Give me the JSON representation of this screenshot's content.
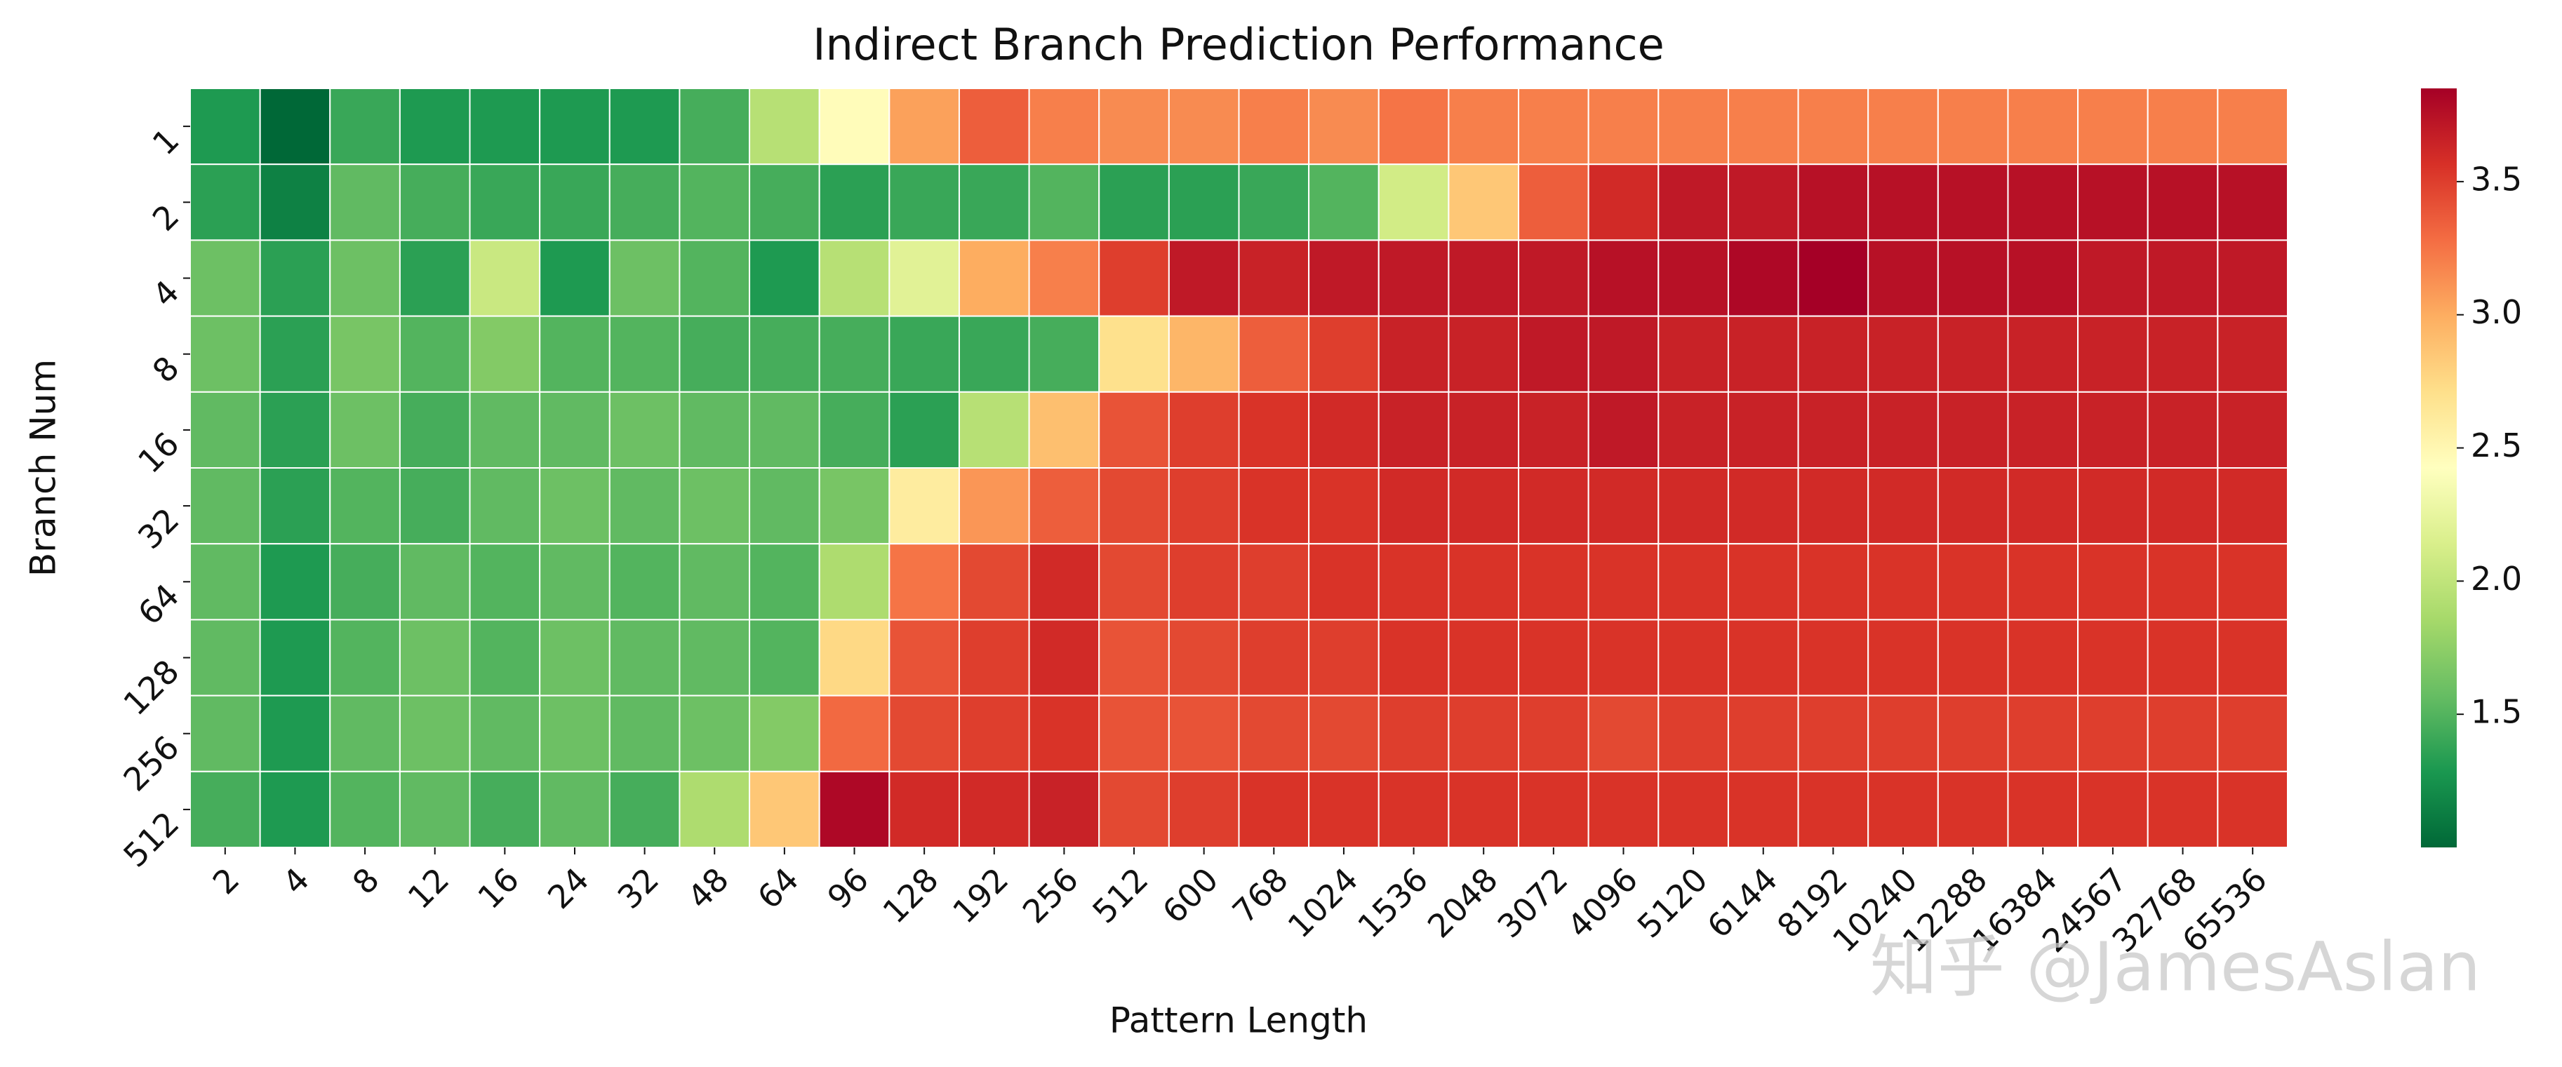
{
  "chart_data": {
    "type": "heatmap",
    "title": "Indirect Branch Prediction Performance",
    "x_label": "Pattern Length",
    "y_label": "Branch Num",
    "x_categories": [
      2,
      4,
      8,
      12,
      16,
      24,
      32,
      48,
      64,
      96,
      128,
      192,
      256,
      512,
      600,
      768,
      1024,
      1536,
      2048,
      3072,
      4096,
      5120,
      6144,
      8192,
      10240,
      12288,
      16384,
      24567,
      32768,
      65536
    ],
    "y_categories": [
      1,
      2,
      4,
      8,
      16,
      32,
      64,
      128,
      256,
      512
    ],
    "values": [
      [
        1.3,
        1.0,
        1.4,
        1.3,
        1.3,
        1.3,
        1.3,
        1.45,
        1.95,
        2.45,
        3.05,
        3.35,
        3.2,
        3.15,
        3.15,
        3.2,
        3.15,
        3.25,
        3.2,
        3.2,
        3.2,
        3.2,
        3.2,
        3.2,
        3.2,
        3.2,
        3.2,
        3.2,
        3.2,
        3.2
      ],
      [
        1.35,
        1.15,
        1.55,
        1.45,
        1.4,
        1.4,
        1.45,
        1.5,
        1.45,
        1.35,
        1.4,
        1.4,
        1.5,
        1.35,
        1.35,
        1.4,
        1.5,
        2.1,
        2.85,
        3.35,
        3.6,
        3.7,
        3.7,
        3.75,
        3.75,
        3.75,
        3.75,
        3.75,
        3.75,
        3.75
      ],
      [
        1.6,
        1.35,
        1.6,
        1.35,
        2.05,
        1.3,
        1.6,
        1.5,
        1.3,
        1.95,
        2.2,
        3.0,
        3.2,
        3.5,
        3.7,
        3.65,
        3.7,
        3.7,
        3.7,
        3.7,
        3.75,
        3.75,
        3.8,
        3.85,
        3.75,
        3.75,
        3.75,
        3.7,
        3.7,
        3.7
      ],
      [
        1.6,
        1.35,
        1.65,
        1.5,
        1.7,
        1.5,
        1.5,
        1.45,
        1.45,
        1.45,
        1.4,
        1.4,
        1.45,
        2.7,
        2.95,
        3.35,
        3.5,
        3.65,
        3.65,
        3.7,
        3.7,
        3.65,
        3.65,
        3.65,
        3.65,
        3.65,
        3.65,
        3.65,
        3.65,
        3.65
      ],
      [
        1.55,
        1.35,
        1.6,
        1.45,
        1.55,
        1.55,
        1.6,
        1.55,
        1.55,
        1.45,
        1.35,
        1.95,
        2.9,
        3.4,
        3.5,
        3.55,
        3.6,
        3.65,
        3.65,
        3.65,
        3.7,
        3.65,
        3.65,
        3.65,
        3.65,
        3.65,
        3.65,
        3.65,
        3.65,
        3.65
      ],
      [
        1.55,
        1.35,
        1.5,
        1.45,
        1.55,
        1.6,
        1.55,
        1.6,
        1.55,
        1.65,
        2.6,
        3.1,
        3.35,
        3.45,
        3.5,
        3.55,
        3.55,
        3.6,
        3.6,
        3.6,
        3.6,
        3.6,
        3.6,
        3.6,
        3.6,
        3.6,
        3.6,
        3.6,
        3.6,
        3.6
      ],
      [
        1.55,
        1.3,
        1.45,
        1.55,
        1.5,
        1.55,
        1.5,
        1.55,
        1.5,
        1.9,
        3.25,
        3.45,
        3.6,
        3.45,
        3.5,
        3.5,
        3.55,
        3.55,
        3.55,
        3.55,
        3.55,
        3.55,
        3.55,
        3.55,
        3.55,
        3.55,
        3.55,
        3.55,
        3.55,
        3.55
      ],
      [
        1.55,
        1.3,
        1.5,
        1.6,
        1.5,
        1.6,
        1.55,
        1.55,
        1.5,
        2.75,
        3.4,
        3.5,
        3.6,
        3.4,
        3.45,
        3.5,
        3.5,
        3.55,
        3.55,
        3.55,
        3.55,
        3.55,
        3.55,
        3.55,
        3.55,
        3.55,
        3.55,
        3.55,
        3.55,
        3.55
      ],
      [
        1.55,
        1.3,
        1.55,
        1.6,
        1.55,
        1.6,
        1.55,
        1.6,
        1.7,
        3.3,
        3.45,
        3.5,
        3.55,
        3.4,
        3.4,
        3.45,
        3.45,
        3.5,
        3.5,
        3.5,
        3.45,
        3.5,
        3.5,
        3.5,
        3.5,
        3.5,
        3.5,
        3.5,
        3.5,
        3.5
      ],
      [
        1.45,
        1.3,
        1.5,
        1.55,
        1.45,
        1.55,
        1.45,
        1.9,
        2.85,
        3.8,
        3.6,
        3.6,
        3.65,
        3.45,
        3.5,
        3.55,
        3.55,
        3.55,
        3.55,
        3.55,
        3.55,
        3.55,
        3.55,
        3.55,
        3.55,
        3.55,
        3.55,
        3.55,
        3.55,
        3.55
      ]
    ],
    "colormap": [
      "#006837",
      "#1a9850",
      "#66bd63",
      "#a6d96a",
      "#d9ef8b",
      "#ffffbf",
      "#fee08b",
      "#fdae61",
      "#f46d43",
      "#d73027",
      "#a50026"
    ],
    "zlim": [
      1.0,
      3.85
    ],
    "zticks": [
      1.5,
      {
        "value": 2,
        "label": "2.0"
      },
      2.5,
      {
        "value": 3,
        "label": "3.0"
      },
      3.5
    ],
    "watermark": "知乎 @JamesAslan"
  }
}
